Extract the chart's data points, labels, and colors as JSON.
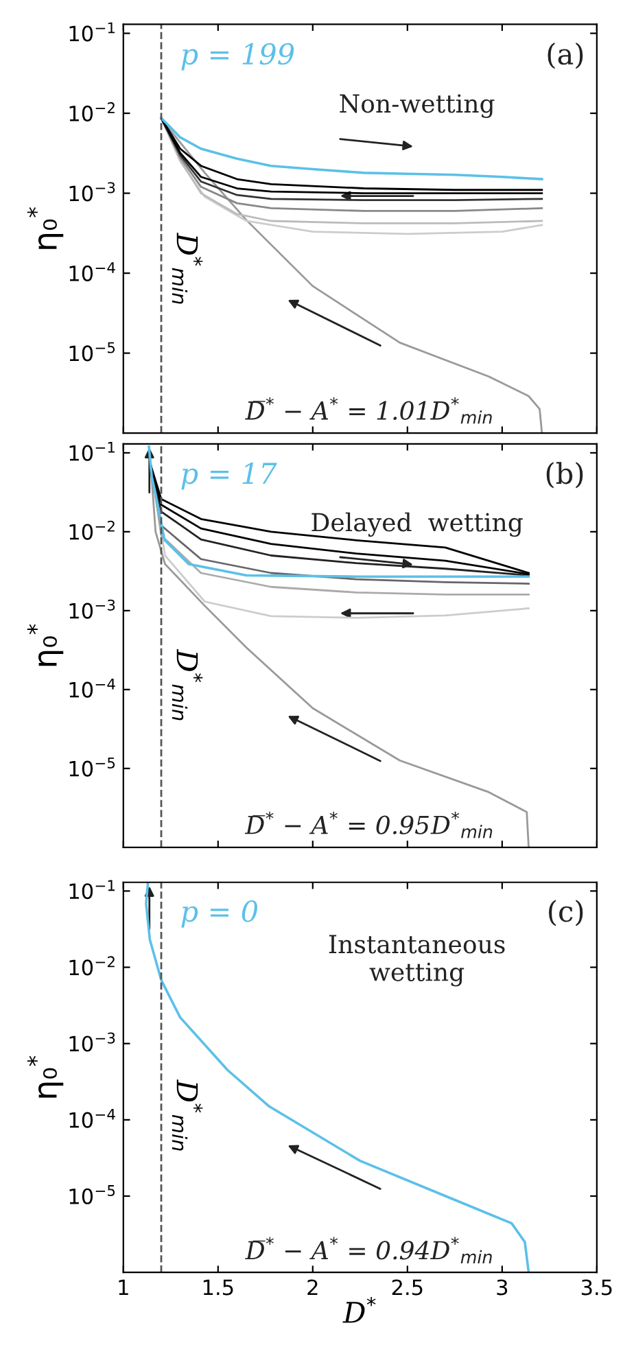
{
  "chart_data": [
    {
      "type": "line",
      "xlim": [
        1,
        3.5
      ],
      "xticks": [
        1,
        1.5,
        2,
        2.5,
        3,
        3.5
      ],
      "log": "y",
      "ylim": [
        1e-06,
        0.13
      ],
      "yticks": [
        {
          "value": 0.1,
          "label": "10$^{−1}$"
        },
        {
          "value": 0.01,
          "label": "10$^{−2}$"
        },
        {
          "value": 0.001,
          "label": "10$^{−3}$"
        },
        {
          "value": 0.0001,
          "label": "10$^{−4}$"
        },
        {
          "value": 1e-05,
          "label": "10$^{−5}$"
        }
      ],
      "tick_labels": "y",
      "ylabel": "η₀$^{*}$",
      "ref_lines": [
        {
          "axis": "x",
          "value": 1.2,
          "label": "D$^{*}$$_{min}$",
          "line_style": "dashed",
          "color": "#555555"
        }
      ],
      "annotations": [
        "p = 199",
        "(a)",
        "Non-wetting",
        "D̅$^{*}$ − A$^{*}$ = 1.01D$^{*}$$_{min}$"
      ],
      "series": [
        {
          "color": "#999999",
          "x": [
            1.21,
            1.43,
            1.65,
            2.0,
            2.46,
            2.93,
            3.14,
            3.198,
            3.21
          ],
          "values": [
            0.0079,
            0.0018,
            0.00046,
            6.9e-05,
            1.35e-05,
            5.1e-06,
            2.9e-06,
            2e-06,
            1e-06
          ]
        },
        {
          "color": "#cccccc",
          "x": [
            1.2,
            1.3,
            1.43,
            1.65,
            2.0,
            2.5,
            3.0,
            3.21
          ],
          "values": [
            0.0087,
            0.0025,
            0.0009,
            0.00045,
            0.00033,
            0.00031,
            0.00033,
            0.0004
          ]
        },
        {
          "color": "#bbbbbb",
          "x": [
            1.2,
            1.3,
            1.41,
            1.6,
            1.78,
            2.27,
            2.75,
            3.21
          ],
          "values": [
            0.0087,
            0.0026,
            0.001,
            0.00055,
            0.00045,
            0.00042,
            0.00042,
            0.00045
          ]
        },
        {
          "color": "#888888",
          "x": [
            1.2,
            1.3,
            1.41,
            1.6,
            1.78,
            2.27,
            2.75,
            3.21
          ],
          "values": [
            0.0087,
            0.0028,
            0.0012,
            0.00075,
            0.00065,
            0.0006,
            0.0006,
            0.00065
          ]
        },
        {
          "color": "#333333",
          "x": [
            1.2,
            1.3,
            1.41,
            1.6,
            1.78,
            2.27,
            2.75,
            3.21
          ],
          "values": [
            0.0087,
            0.003,
            0.0014,
            0.00095,
            0.00085,
            0.00082,
            0.00082,
            0.00085
          ]
        },
        {
          "color": "#000000",
          "x": [
            1.2,
            1.3,
            1.41,
            1.6,
            1.78,
            2.27,
            2.75,
            3.21
          ],
          "values": [
            0.0087,
            0.0032,
            0.0016,
            0.00115,
            0.00105,
            0.001,
            0.001,
            0.001
          ]
        },
        {
          "color": "#000000",
          "x": [
            1.2,
            1.3,
            1.41,
            1.6,
            1.78,
            2.27,
            2.75,
            3.21
          ],
          "values": [
            0.0087,
            0.0036,
            0.0022,
            0.0015,
            0.0013,
            0.00115,
            0.0011,
            0.0011
          ]
        },
        {
          "color": "#5bc0e8",
          "x": [
            1.2,
            1.3,
            1.41,
            1.6,
            1.78,
            2.0,
            2.27,
            2.5,
            2.75,
            3.0,
            3.21
          ],
          "values": [
            0.0087,
            0.005,
            0.0036,
            0.0027,
            0.0022,
            0.002,
            0.0018,
            0.00175,
            0.0017,
            0.0016,
            0.0015
          ]
        }
      ]
    },
    {
      "type": "line",
      "xlim": [
        1,
        3.5
      ],
      "xticks": [
        1,
        1.5,
        2,
        2.5,
        3,
        3.5
      ],
      "log": "y",
      "ylim": [
        1e-06,
        0.13
      ],
      "yticks": [
        {
          "value": 0.1,
          "label": "10$^{−1}$"
        },
        {
          "value": 0.01,
          "label": "10$^{−2}$"
        },
        {
          "value": 0.001,
          "label": "10$^{−3}$"
        },
        {
          "value": 0.0001,
          "label": "10$^{−4}$"
        },
        {
          "value": 1e-05,
          "label": "10$^{−5}$"
        }
      ],
      "tick_labels": "y",
      "ylabel": "η₀$^{*}$",
      "ref_lines": [
        {
          "axis": "x",
          "value": 1.2,
          "label": "D$^{*}$$_{min}$",
          "line_style": "dashed",
          "color": "#555555"
        }
      ],
      "annotations": [
        "p = 17",
        "(b)",
        "Delayed  wetting",
        "D̅$^{*}$ − A$^{*}$ = 0.95D$^{*}$$_{min}$"
      ],
      "series": [
        {
          "color": "#999999",
          "x": [
            1.145,
            1.17,
            1.22,
            1.43,
            1.65,
            2.0,
            2.46,
            2.93,
            3.13,
            3.14
          ],
          "values": [
            0.069,
            0.01,
            0.0039,
            0.00115,
            0.00034,
            5.8e-05,
            1.26e-05,
            5e-06,
            2.8e-06,
            1e-06
          ]
        },
        {
          "color": "#cccccc",
          "x": [
            1.145,
            1.22,
            1.43,
            1.78,
            2.23,
            2.7,
            3.14
          ],
          "values": [
            0.069,
            0.005,
            0.0013,
            0.00085,
            0.00081,
            0.00087,
            0.00107
          ]
        },
        {
          "color": "#aaaaaa",
          "x": [
            1.145,
            1.2,
            1.41,
            1.78,
            2.23,
            2.7,
            3.14
          ],
          "values": [
            0.069,
            0.009,
            0.003,
            0.002,
            0.0017,
            0.0016,
            0.0016
          ]
        },
        {
          "color": "#666666",
          "x": [
            1.145,
            1.2,
            1.41,
            1.78,
            2.23,
            2.7,
            3.14
          ],
          "values": [
            0.069,
            0.012,
            0.0045,
            0.003,
            0.0025,
            0.0023,
            0.0022
          ]
        },
        {
          "color": "#222222",
          "x": [
            1.145,
            1.2,
            1.41,
            1.78,
            2.23,
            2.7,
            3.14
          ],
          "values": [
            0.069,
            0.018,
            0.008,
            0.005,
            0.004,
            0.0034,
            0.0028
          ]
        },
        {
          "color": "#000000",
          "x": [
            1.145,
            1.2,
            1.41,
            1.78,
            2.23,
            2.7,
            3.14
          ],
          "values": [
            0.069,
            0.022,
            0.011,
            0.007,
            0.0053,
            0.0043,
            0.0029
          ]
        },
        {
          "color": "#000000",
          "x": [
            1.145,
            1.2,
            1.41,
            1.78,
            2.23,
            2.7,
            3.14
          ],
          "values": [
            0.069,
            0.026,
            0.0145,
            0.01,
            0.0078,
            0.0063,
            0.003
          ]
        },
        {
          "color": "#5bc0e8",
          "x": [
            1.135,
            1.15,
            1.17,
            1.217,
            1.345,
            1.65,
            2.23,
            3.14
          ],
          "values": [
            0.12,
            0.05,
            0.03,
            0.0079,
            0.0039,
            0.0028,
            0.0027,
            0.0027
          ]
        }
      ]
    },
    {
      "type": "line",
      "xlim": [
        1,
        3.5
      ],
      "xticks": [
        1,
        1.5,
        2,
        2.5,
        3,
        3.5
      ],
      "log": "y",
      "ylim": [
        1e-06,
        0.13
      ],
      "yticks": [
        {
          "value": 0.1,
          "label": "10$^{−1}$"
        },
        {
          "value": 0.01,
          "label": "10$^{−2}$"
        },
        {
          "value": 0.001,
          "label": "10$^{−3}$"
        },
        {
          "value": 0.0001,
          "label": "10$^{−4}$"
        },
        {
          "value": 1e-05,
          "label": "10$^{−5}$"
        }
      ],
      "ylabel": "η₀$^{*}$",
      "xlabel": "D$^{*}$",
      "ref_lines": [
        {
          "axis": "x",
          "value": 1.2,
          "label": "D$^{*}$$_{min}$",
          "line_style": "dashed",
          "color": "#555555"
        }
      ],
      "annotations": [
        "p = 0",
        "(c)",
        "Instantaneous\nwetting",
        "D̅$^{*}$ − A$^{*}$ = 0.94D$^{*}$$_{min}$"
      ],
      "series": [
        {
          "color": "#5bc0e8",
          "x": [
            1.13,
            1.12,
            1.14,
            1.2,
            1.3,
            1.55,
            1.77,
            2.25,
            2.71,
            3.05,
            3.12,
            3.14
          ],
          "values": [
            0.13,
            0.068,
            0.023,
            0.0068,
            0.0022,
            0.00045,
            0.00015,
            2.9e-05,
            9.8e-06,
            4.4e-06,
            2.5e-06,
            1e-06
          ]
        }
      ]
    }
  ]
}
